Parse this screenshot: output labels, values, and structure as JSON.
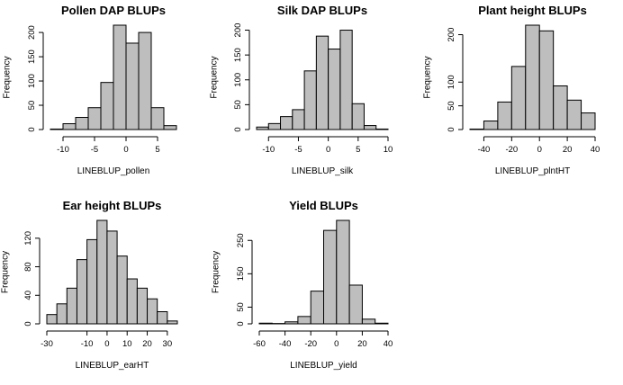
{
  "colors": {
    "bar_fill": "#bebebe",
    "bar_stroke": "#000000",
    "background": "#ffffff"
  },
  "chart_data": [
    {
      "type": "bar",
      "title": "Pollen DAP BLUPs",
      "xlabel": "LINEBLUP_pollen",
      "ylabel": "Frequency",
      "bin_edges": [
        -12,
        -10,
        -8,
        -6,
        -4,
        -2,
        0,
        2,
        4,
        6,
        8
      ],
      "values": [
        1,
        12,
        25,
        45,
        97,
        215,
        178,
        200,
        45,
        8
      ],
      "xlim": [
        -12,
        8
      ],
      "ylim": [
        0,
        215
      ],
      "xticks": [
        -10,
        -5,
        0,
        5
      ],
      "yticks": [
        0,
        50,
        100,
        150,
        200
      ]
    },
    {
      "type": "bar",
      "title": "Silk DAP BLUPs",
      "xlabel": "LINEBLUP_silk",
      "ylabel": "Frequency",
      "bin_edges": [
        -12,
        -10,
        -8,
        -6,
        -4,
        -2,
        0,
        2,
        4,
        6,
        8,
        10
      ],
      "values": [
        5,
        12,
        26,
        40,
        118,
        188,
        162,
        200,
        52,
        8,
        1
      ],
      "xlim": [
        -12,
        10
      ],
      "ylim": [
        0,
        210
      ],
      "xticks": [
        -10,
        -5,
        0,
        5,
        10
      ],
      "yticks": [
        0,
        50,
        100,
        150,
        200
      ]
    },
    {
      "type": "bar",
      "title": "Plant height BLUPs",
      "xlabel": "LINEBLUP_plntHT",
      "ylabel": "Frequency",
      "bin_edges": [
        -50,
        -40,
        -30,
        -20,
        -10,
        0,
        10,
        20,
        30,
        40
      ],
      "values": [
        1,
        18,
        58,
        133,
        220,
        208,
        92,
        62,
        35
      ],
      "xlim": [
        -50,
        40
      ],
      "ylim": [
        0,
        220
      ],
      "xticks": [
        -40,
        -20,
        0,
        20,
        40
      ],
      "yticks": [
        0,
        50,
        100,
        200
      ]
    },
    {
      "type": "bar",
      "title": "Ear height BLUPs",
      "xlabel": "LINEBLUP_earHT",
      "ylabel": "Frequency",
      "bin_edges": [
        -30,
        -25,
        -20,
        -15,
        -10,
        -5,
        0,
        5,
        10,
        15,
        20,
        25,
        30,
        35
      ],
      "values": [
        13,
        28,
        50,
        90,
        118,
        145,
        130,
        95,
        63,
        50,
        35,
        17,
        4
      ],
      "xlim": [
        -30,
        35
      ],
      "ylim": [
        0,
        145
      ],
      "xticks": [
        -30,
        -10,
        0,
        10,
        20,
        30
      ],
      "yticks": [
        0,
        40,
        80,
        120
      ]
    },
    {
      "type": "bar",
      "title": "Yield BLUPs",
      "xlabel": "LINEBLUP_yield",
      "ylabel": "Frequency",
      "bin_edges": [
        -60,
        -50,
        -40,
        -30,
        -20,
        -10,
        0,
        10,
        20,
        30,
        40
      ],
      "values": [
        2,
        1,
        6,
        22,
        98,
        280,
        310,
        116,
        14,
        2
      ],
      "xlim": [
        -60,
        40
      ],
      "ylim": [
        0,
        310
      ],
      "xticks": [
        -60,
        -40,
        -20,
        0,
        20,
        40
      ],
      "yticks": [
        0,
        50,
        150,
        250
      ]
    }
  ]
}
